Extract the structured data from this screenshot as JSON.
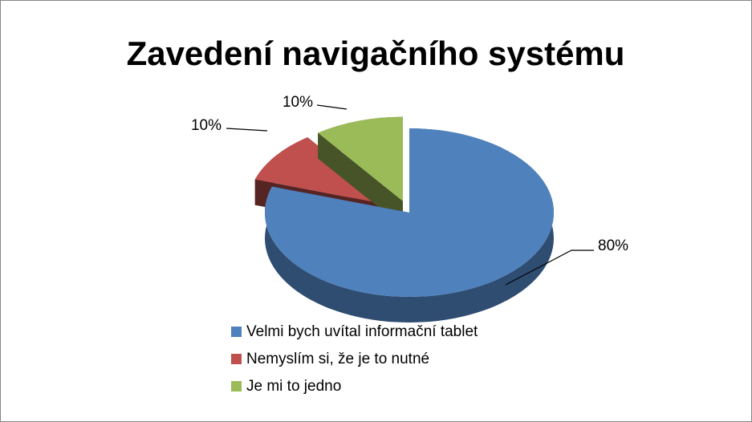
{
  "chart_data": {
    "type": "pie",
    "title": "Zavedení navigačního systému",
    "categories": [
      "Velmi bych uvítal informační tablet",
      "Nemyslím si, že je to nutné",
      "Je mi to jedno"
    ],
    "values": [
      80,
      10,
      10
    ],
    "value_labels": [
      "80%",
      "10%",
      "10%"
    ],
    "colors": [
      "#4f81bd",
      "#c0504d",
      "#9bbb59"
    ],
    "legend": "bottom"
  }
}
